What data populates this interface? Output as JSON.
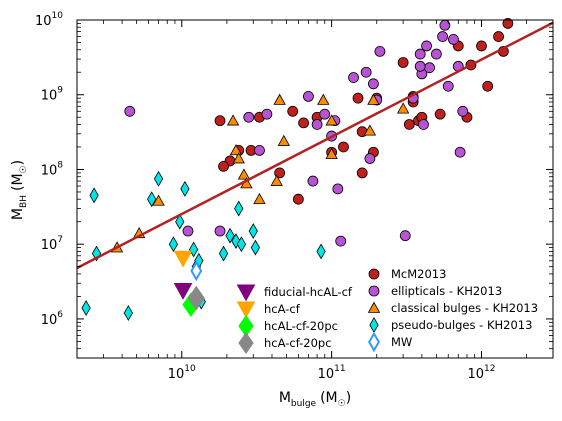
{
  "chart_data": {
    "type": "scatter",
    "x_scale": "log",
    "y_scale": "log",
    "xlim": [
      2000000000.0,
      3000000000000.0
    ],
    "ylim": [
      300000,
      10000000000
    ],
    "xlabel": {
      "main": "M",
      "sub": "bulge",
      "unit": "(M",
      "unit_close": ")"
    },
    "ylabel": {
      "main": "M",
      "sub": "BH",
      "unit": "(M",
      "unit_close": ")"
    },
    "x_ticks": [
      {
        "value": 10000000000.0,
        "base": "10",
        "exp": "10"
      },
      {
        "value": 100000000000.0,
        "base": "10",
        "exp": "11"
      },
      {
        "value": 1000000000000.0,
        "base": "10",
        "exp": "12"
      }
    ],
    "y_ticks": [
      {
        "value": 1000000.0,
        "base": "10",
        "exp": "6"
      },
      {
        "value": 10000000.0,
        "base": "10",
        "exp": "7"
      },
      {
        "value": 100000000.0,
        "base": "10",
        "exp": "8"
      },
      {
        "value": 1000000000.0,
        "base": "10",
        "exp": "9"
      },
      {
        "value": 10000000000.0,
        "base": "10",
        "exp": "10"
      }
    ],
    "grid": false,
    "fit_line": {
      "color": "#b22222",
      "points": [
        [
          2000000000.0,
          4800000.0
        ],
        [
          3000000000000.0,
          9200000000.0
        ]
      ]
    },
    "legends": [
      {
        "placement": "bottom-center",
        "entries": [
          {
            "label": "fiducial-hcAL-cf",
            "marker": "triangle-down",
            "color": "#800080"
          },
          {
            "label": "hcA-cf",
            "marker": "triangle-down",
            "color": "#ffa500"
          },
          {
            "label": "hcAL-cf-20pc",
            "marker": "diamond",
            "color": "#00ff00"
          },
          {
            "label": "hcA-cf-20pc",
            "marker": "diamond",
            "color": "#888888"
          }
        ]
      },
      {
        "placement": "bottom-right",
        "entries": [
          {
            "label": "McM2013",
            "marker": "circle",
            "color": "#c0201c"
          },
          {
            "label": "ellipticals - KH2013",
            "marker": "circle",
            "color": "#b854d4"
          },
          {
            "label": "classical bulges - KH2013",
            "marker": "triangle-up",
            "color": "#ff8c00"
          },
          {
            "label": "pseudo-bulges - KH2013",
            "marker": "thin-diamond",
            "color": "#00e5e5"
          },
          {
            "label": "MW",
            "marker": "open-diamond",
            "color": "#3399ff"
          }
        ]
      }
    ],
    "series": [
      {
        "name": "McM2013",
        "marker": "circle",
        "color": "#c0201c",
        "points": [
          [
            18000000000.0,
            450000000.0
          ],
          [
            21000000000.0,
            130000000.0
          ],
          [
            24000000000.0,
            180000000.0
          ],
          [
            29000000000.0,
            180000000.0
          ],
          [
            33000000000.0,
            500000000.0
          ],
          [
            45000000000.0,
            90000000.0
          ],
          [
            55000000000.0,
            600000000.0
          ],
          [
            60000000000.0,
            40000000.0
          ],
          [
            65000000000.0,
            420000000.0
          ],
          [
            80000000000.0,
            500000000.0
          ],
          [
            100000000000.0,
            170000000.0
          ],
          [
            120000000000.0,
            200000000.0
          ],
          [
            150000000000.0,
            900000000.0
          ],
          [
            160000000000.0,
            90000000.0
          ],
          [
            190000000000.0,
            170000000.0
          ],
          [
            200000000000.0,
            900000000.0
          ],
          [
            300000000000.0,
            2700000000.0
          ],
          [
            330000000000.0,
            400000000.0
          ],
          [
            350000000000.0,
            800000000.0
          ],
          [
            380000000000.0,
            450000000.0
          ],
          [
            400000000000.0,
            500000000.0
          ],
          [
            530000000000.0,
            550000000.0
          ],
          [
            700000000000.0,
            4500000000.0
          ],
          [
            800000000000.0,
            500000000.0
          ],
          [
            850000000000.0,
            2500000000.0
          ],
          [
            1000000000000.0,
            4500000000.0
          ],
          [
            1100000000000.0,
            1300000000.0
          ],
          [
            1300000000000.0,
            6000000000.0
          ],
          [
            1400000000000.0,
            3800000000.0
          ],
          [
            1500000000000.0,
            9000000000.0
          ],
          [
            350000000000.0,
            950000000.0
          ],
          [
            19000000000.0,
            110000000.0
          ],
          [
            160000000000.0,
            320000000.0
          ]
        ]
      },
      {
        "name": "ellipticals - KH2013",
        "marker": "circle",
        "color": "#b854d4",
        "points": [
          [
            4500000000.0,
            600000000.0
          ],
          [
            11000000000.0,
            15000000.0
          ],
          [
            18000000000.0,
            15000000.0
          ],
          [
            28000000000.0,
            500000000.0
          ],
          [
            33000000000.0,
            180000000.0
          ],
          [
            37000000000.0,
            550000000.0
          ],
          [
            70000000000.0,
            950000000.0
          ],
          [
            75000000000.0,
            70000000.0
          ],
          [
            80000000000.0,
            400000000.0
          ],
          [
            90000000000.0,
            550000000.0
          ],
          [
            100000000000.0,
            280000000.0
          ],
          [
            105000000000.0,
            450000000.0
          ],
          [
            110000000000.0,
            55000000.0
          ],
          [
            115000000000.0,
            11000000.0
          ],
          [
            140000000000.0,
            1700000000.0
          ],
          [
            170000000000.0,
            2000000000.0
          ],
          [
            180000000000.0,
            140000000.0
          ],
          [
            190000000000.0,
            1400000000.0
          ],
          [
            200000000000.0,
            850000000.0
          ],
          [
            210000000000.0,
            3800000000.0
          ],
          [
            310000000000.0,
            13000000.0
          ],
          [
            350000000000.0,
            900000000.0
          ],
          [
            390000000000.0,
            3500000000.0
          ],
          [
            400000000000.0,
            1900000000.0
          ],
          [
            410000000000.0,
            400000000.0
          ],
          [
            430000000000.0,
            4500000000.0
          ],
          [
            450000000000.0,
            2300000000.0
          ],
          [
            500000000000.0,
            3500000000.0
          ],
          [
            550000000000.0,
            6000000000.0
          ],
          [
            600000000000.0,
            1300000000.0
          ],
          [
            650000000000.0,
            5500000000.0
          ],
          [
            700000000000.0,
            2400000000.0
          ],
          [
            720000000000.0,
            170000000.0
          ],
          [
            750000000000.0,
            600000000.0
          ],
          [
            570000000000.0,
            8500000000.0
          ],
          [
            390000000000.0,
            2400000000.0
          ]
        ]
      },
      {
        "name": "classical bulges - KH2013",
        "marker": "triangle-up",
        "color": "#ff8c00",
        "points": [
          [
            3700000000.0,
            9000000.0
          ],
          [
            5200000000.0,
            14000000.0
          ],
          [
            7000000000.0,
            38000000.0
          ],
          [
            22000000000.0,
            450000000.0
          ],
          [
            23000000000.0,
            180000000.0
          ],
          [
            24000000000.0,
            140000000.0
          ],
          [
            26000000000.0,
            85000000.0
          ],
          [
            27000000000.0,
            65000000.0
          ],
          [
            33000000000.0,
            40000000.0
          ],
          [
            43000000000.0,
            70000000.0
          ],
          [
            45000000000.0,
            850000000.0
          ],
          [
            48000000000.0,
            240000000.0
          ],
          [
            88000000000.0,
            850000000.0
          ],
          [
            100000000000.0,
            450000000.0
          ],
          [
            100000000000.0,
            160000000.0
          ],
          [
            180000000000.0,
            330000000.0
          ],
          [
            190000000000.0,
            850000000.0
          ],
          [
            300000000000.0,
            650000000.0
          ]
        ]
      },
      {
        "name": "pseudo-bulges - KH2013",
        "marker": "thin-diamond",
        "color": "#00e5e5",
        "points": [
          [
            2300000000.0,
            1400000.0
          ],
          [
            2600000000.0,
            45000000.0
          ],
          [
            2700000000.0,
            7500000.0
          ],
          [
            4400000000.0,
            1200000.0
          ],
          [
            6300000000.0,
            40000000.0
          ],
          [
            7000000000.0,
            75000000.0
          ],
          [
            8800000000.0,
            10000000.0
          ],
          [
            9700000000.0,
            20000000.0
          ],
          [
            10500000000.0,
            55000000.0
          ],
          [
            12000000000.0,
            8500000.0
          ],
          [
            12000000000.0,
            1700000.0
          ],
          [
            12500000000.0,
            5000000.0
          ],
          [
            13000000000.0,
            6000000.0
          ],
          [
            13500000000.0,
            1700000.0
          ],
          [
            19000000000.0,
            7500000.0
          ],
          [
            21000000000.0,
            13000000.0
          ],
          [
            23000000000.0,
            11000000.0
          ],
          [
            24000000000.0,
            30000000.0
          ],
          [
            25000000000.0,
            10000000.0
          ],
          [
            30000000000.0,
            15000000.0
          ],
          [
            31000000000.0,
            9000000.0
          ],
          [
            85000000000.0,
            8000000.0
          ]
        ]
      },
      {
        "name": "MW",
        "marker": "open-diamond",
        "color": "#3399ff",
        "points": [
          [
            12500000000.0,
            4400000.0
          ]
        ]
      },
      {
        "name": "fiducial-hcAL-cf",
        "marker": "triangle-down",
        "color": "#800080",
        "points": [
          [
            10200000000.0,
            2400000.0
          ]
        ]
      },
      {
        "name": "hcA-cf",
        "marker": "triangle-down",
        "color": "#ffa500",
        "points": [
          [
            10200000000.0,
            6500000.0
          ]
        ]
      },
      {
        "name": "hcAL-cf-20pc",
        "marker": "diamond",
        "color": "#00ff00",
        "points": [
          [
            11500000000.0,
            1550000.0
          ]
        ]
      },
      {
        "name": "hcA-cf-20pc",
        "marker": "diamond",
        "color": "#888888",
        "points": [
          [
            12500000000.0,
            1900000.0
          ]
        ]
      }
    ]
  }
}
